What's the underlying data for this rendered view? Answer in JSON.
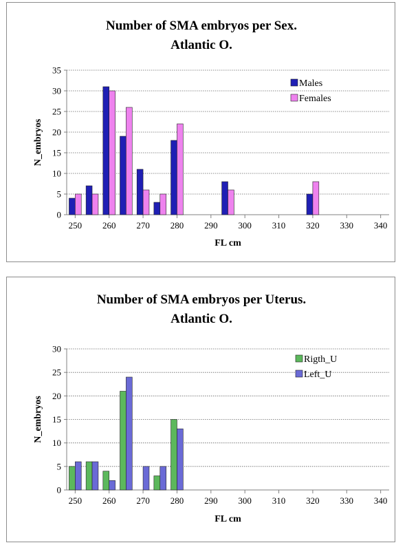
{
  "chart_data": [
    {
      "type": "bar",
      "title_lines": [
        "Number of SMA embryos per Sex.",
        "Atlantic O."
      ],
      "xlabel": "FL cm",
      "ylabel": "N_embryos",
      "ylim": [
        0,
        35
      ],
      "y_ticks": [
        "0",
        "5",
        "10",
        "15",
        "20",
        "25",
        "30",
        "35"
      ],
      "categories": [
        "250",
        "255",
        "260",
        "265",
        "270",
        "275",
        "280",
        "285",
        "290",
        "295",
        "300",
        "305",
        "310",
        "315",
        "320",
        "325",
        "330",
        "335",
        "340"
      ],
      "x_tick_labels": [
        "250",
        "260",
        "270",
        "280",
        "290",
        "300",
        "310",
        "320",
        "330",
        "340"
      ],
      "grid": true,
      "legend_position": "top-right",
      "series": [
        {
          "name": "Males",
          "color": "#1f1fb4",
          "values": [
            4,
            7,
            31,
            19,
            11,
            3,
            18,
            0,
            0,
            8,
            0,
            0,
            0,
            0,
            5,
            0,
            0,
            0,
            0
          ]
        },
        {
          "name": "Females",
          "color": "#ee82ee",
          "values": [
            5,
            5,
            30,
            26,
            6,
            5,
            22,
            0,
            0,
            6,
            0,
            0,
            0,
            0,
            8,
            0,
            0,
            0,
            0
          ]
        }
      ]
    },
    {
      "type": "bar",
      "title_lines": [
        "Number of SMA embryos per Uterus.",
        "Atlantic O."
      ],
      "xlabel": "FL cm",
      "ylabel": "N_embryos",
      "ylim": [
        0,
        30
      ],
      "y_ticks": [
        "0",
        "5",
        "10",
        "15",
        "20",
        "25",
        "30"
      ],
      "categories": [
        "250",
        "255",
        "260",
        "265",
        "270",
        "275",
        "280",
        "285",
        "290",
        "295",
        "300",
        "305",
        "310",
        "315",
        "320",
        "325",
        "330",
        "335",
        "340"
      ],
      "x_tick_labels": [
        "250",
        "260",
        "270",
        "280",
        "290",
        "300",
        "310",
        "320",
        "330",
        "340"
      ],
      "grid": true,
      "legend_position": "top-right",
      "series": [
        {
          "name": "Rigth_U",
          "color": "#5cb85c",
          "values": [
            5,
            6,
            4,
            21,
            0,
            3,
            15,
            0,
            0,
            0,
            0,
            0,
            0,
            0,
            0,
            0,
            0,
            0,
            0
          ]
        },
        {
          "name": "Left_U",
          "color": "#6a6ad6",
          "values": [
            6,
            6,
            2,
            24,
            5,
            5,
            13,
            0,
            0,
            0,
            0,
            0,
            0,
            0,
            0,
            0,
            0,
            0,
            0
          ]
        }
      ]
    }
  ]
}
